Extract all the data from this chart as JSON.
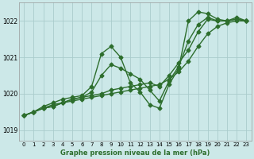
{
  "title": "",
  "xlabel": "Graphe pression niveau de la mer (hPa)",
  "ylabel": "",
  "bg_color": "#cce8e8",
  "line_color": "#2d6e2d",
  "grid_color": "#aacccc",
  "xlim": [
    -0.5,
    23.5
  ],
  "ylim": [
    1018.7,
    1022.5
  ],
  "yticks": [
    1019,
    1020,
    1021,
    1022
  ],
  "xticks": [
    0,
    1,
    2,
    3,
    4,
    5,
    6,
    7,
    8,
    9,
    10,
    11,
    12,
    13,
    14,
    15,
    16,
    17,
    18,
    19,
    20,
    21,
    22,
    23
  ],
  "series": [
    {
      "x": [
        0,
        1,
        2,
        3,
        4,
        5,
        6,
        7,
        8,
        9,
        10,
        11,
        12,
        13,
        14,
        15,
        16,
        17,
        18,
        19,
        20,
        21,
        22,
        23
      ],
      "y": [
        1019.4,
        1019.5,
        1019.65,
        1019.75,
        1019.85,
        1019.9,
        1019.95,
        1020.2,
        1021.1,
        1021.3,
        1021.0,
        1020.3,
        1020.05,
        1019.7,
        1019.6,
        1020.25,
        1020.7,
        1022.0,
        1022.25,
        1022.2,
        1022.05,
        1022.0,
        1022.1,
        1022.0
      ]
    },
    {
      "x": [
        0,
        1,
        2,
        3,
        4,
        5,
        6,
        7,
        8,
        9,
        10,
        11,
        12,
        13,
        14,
        15,
        16,
        17,
        18,
        19,
        20,
        21,
        22,
        23
      ],
      "y": [
        1019.4,
        1019.5,
        1019.6,
        1019.65,
        1019.75,
        1019.8,
        1019.85,
        1019.9,
        1019.95,
        1020.0,
        1020.05,
        1020.1,
        1020.15,
        1020.2,
        1020.25,
        1020.4,
        1020.6,
        1020.9,
        1021.3,
        1021.65,
        1021.85,
        1021.95,
        1022.0,
        1022.0
      ]
    },
    {
      "x": [
        0,
        1,
        2,
        3,
        4,
        5,
        6,
        7,
        8,
        9,
        10,
        11,
        12,
        13,
        14,
        15,
        16,
        17,
        18,
        19,
        20,
        21,
        22,
        23
      ],
      "y": [
        1019.4,
        1019.5,
        1019.6,
        1019.65,
        1019.75,
        1019.85,
        1019.9,
        1019.95,
        1020.0,
        1020.1,
        1020.15,
        1020.2,
        1020.25,
        1020.3,
        1020.2,
        1020.5,
        1020.85,
        1021.2,
        1021.7,
        1022.05,
        1022.0,
        1022.0,
        1022.05,
        1022.0
      ]
    },
    {
      "x": [
        0,
        1,
        2,
        3,
        4,
        5,
        6,
        7,
        8,
        9,
        10,
        11,
        12,
        13,
        14,
        15,
        16,
        17,
        18,
        19,
        20,
        21,
        22,
        23
      ],
      "y": [
        1019.4,
        1019.5,
        1019.6,
        1019.7,
        1019.75,
        1019.85,
        1019.9,
        1020.05,
        1020.5,
        1020.8,
        1020.7,
        1020.55,
        1020.4,
        1020.1,
        1019.8,
        1020.35,
        1020.75,
        1021.45,
        1021.9,
        1022.1,
        1022.0,
        1022.0,
        1022.05,
        1022.0
      ]
    }
  ],
  "marker": "D",
  "markersize": 2.5,
  "linewidth": 1.0
}
